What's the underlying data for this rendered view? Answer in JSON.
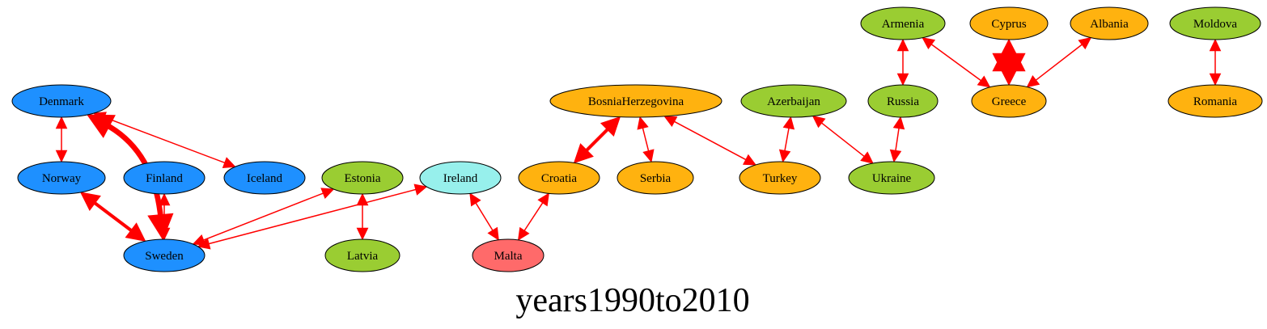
{
  "graph": {
    "title": "years1990to2010",
    "colors": {
      "edge": "#ff0000",
      "outline": "#000000",
      "groups": {
        "blue": "#1e90ff",
        "green": "#9acd32",
        "orange": "#ffb20f",
        "cyan": "#97f0ec",
        "red": "#ff6a6a"
      }
    },
    "nodes": [
      {
        "id": "denmark",
        "label": "Denmark",
        "group": "blue"
      },
      {
        "id": "norway",
        "label": "Norway",
        "group": "blue"
      },
      {
        "id": "finland",
        "label": "Finland",
        "group": "blue"
      },
      {
        "id": "iceland",
        "label": "Iceland",
        "group": "blue"
      },
      {
        "id": "sweden",
        "label": "Sweden",
        "group": "blue"
      },
      {
        "id": "estonia",
        "label": "Estonia",
        "group": "green"
      },
      {
        "id": "latvia",
        "label": "Latvia",
        "group": "green"
      },
      {
        "id": "ireland",
        "label": "Ireland",
        "group": "cyan"
      },
      {
        "id": "malta",
        "label": "Malta",
        "group": "red"
      },
      {
        "id": "croatia",
        "label": "Croatia",
        "group": "orange"
      },
      {
        "id": "bosnia",
        "label": "BosniaHerzegovina",
        "group": "orange"
      },
      {
        "id": "serbia",
        "label": "Serbia",
        "group": "orange"
      },
      {
        "id": "turkey",
        "label": "Turkey",
        "group": "orange"
      },
      {
        "id": "azerbaijan",
        "label": "Azerbaijan",
        "group": "green"
      },
      {
        "id": "ukraine",
        "label": "Ukraine",
        "group": "green"
      },
      {
        "id": "russia",
        "label": "Russia",
        "group": "green"
      },
      {
        "id": "armenia",
        "label": "Armenia",
        "group": "green"
      },
      {
        "id": "cyprus",
        "label": "Cyprus",
        "group": "orange"
      },
      {
        "id": "greece",
        "label": "Greece",
        "group": "orange"
      },
      {
        "id": "albania",
        "label": "Albania",
        "group": "orange"
      },
      {
        "id": "moldova",
        "label": "Moldova",
        "group": "green"
      },
      {
        "id": "romania",
        "label": "Romania",
        "group": "orange"
      }
    ],
    "edges": [
      {
        "from": "denmark",
        "to": "norway",
        "weight": 1
      },
      {
        "from": "denmark",
        "to": "iceland",
        "weight": 1
      },
      {
        "from": "denmark",
        "to": "sweden",
        "weight": 3
      },
      {
        "from": "norway",
        "to": "sweden",
        "weight": 2
      },
      {
        "from": "finland",
        "to": "sweden",
        "weight": 1
      },
      {
        "from": "estonia",
        "to": "sweden",
        "weight": 1
      },
      {
        "from": "ireland",
        "to": "sweden",
        "weight": 1
      },
      {
        "from": "estonia",
        "to": "latvia",
        "weight": 1
      },
      {
        "from": "ireland",
        "to": "malta",
        "weight": 1
      },
      {
        "from": "croatia",
        "to": "malta",
        "weight": 1
      },
      {
        "from": "bosnia",
        "to": "croatia",
        "weight": 2
      },
      {
        "from": "bosnia",
        "to": "serbia",
        "weight": 1
      },
      {
        "from": "bosnia",
        "to": "turkey",
        "weight": 1
      },
      {
        "from": "azerbaijan",
        "to": "turkey",
        "weight": 1
      },
      {
        "from": "azerbaijan",
        "to": "ukraine",
        "weight": 1
      },
      {
        "from": "russia",
        "to": "ukraine",
        "weight": 1
      },
      {
        "from": "armenia",
        "to": "russia",
        "weight": 1
      },
      {
        "from": "armenia",
        "to": "greece",
        "weight": 1
      },
      {
        "from": "cyprus",
        "to": "greece",
        "weight": 4
      },
      {
        "from": "albania",
        "to": "greece",
        "weight": 1
      },
      {
        "from": "moldova",
        "to": "romania",
        "weight": 1
      }
    ]
  }
}
